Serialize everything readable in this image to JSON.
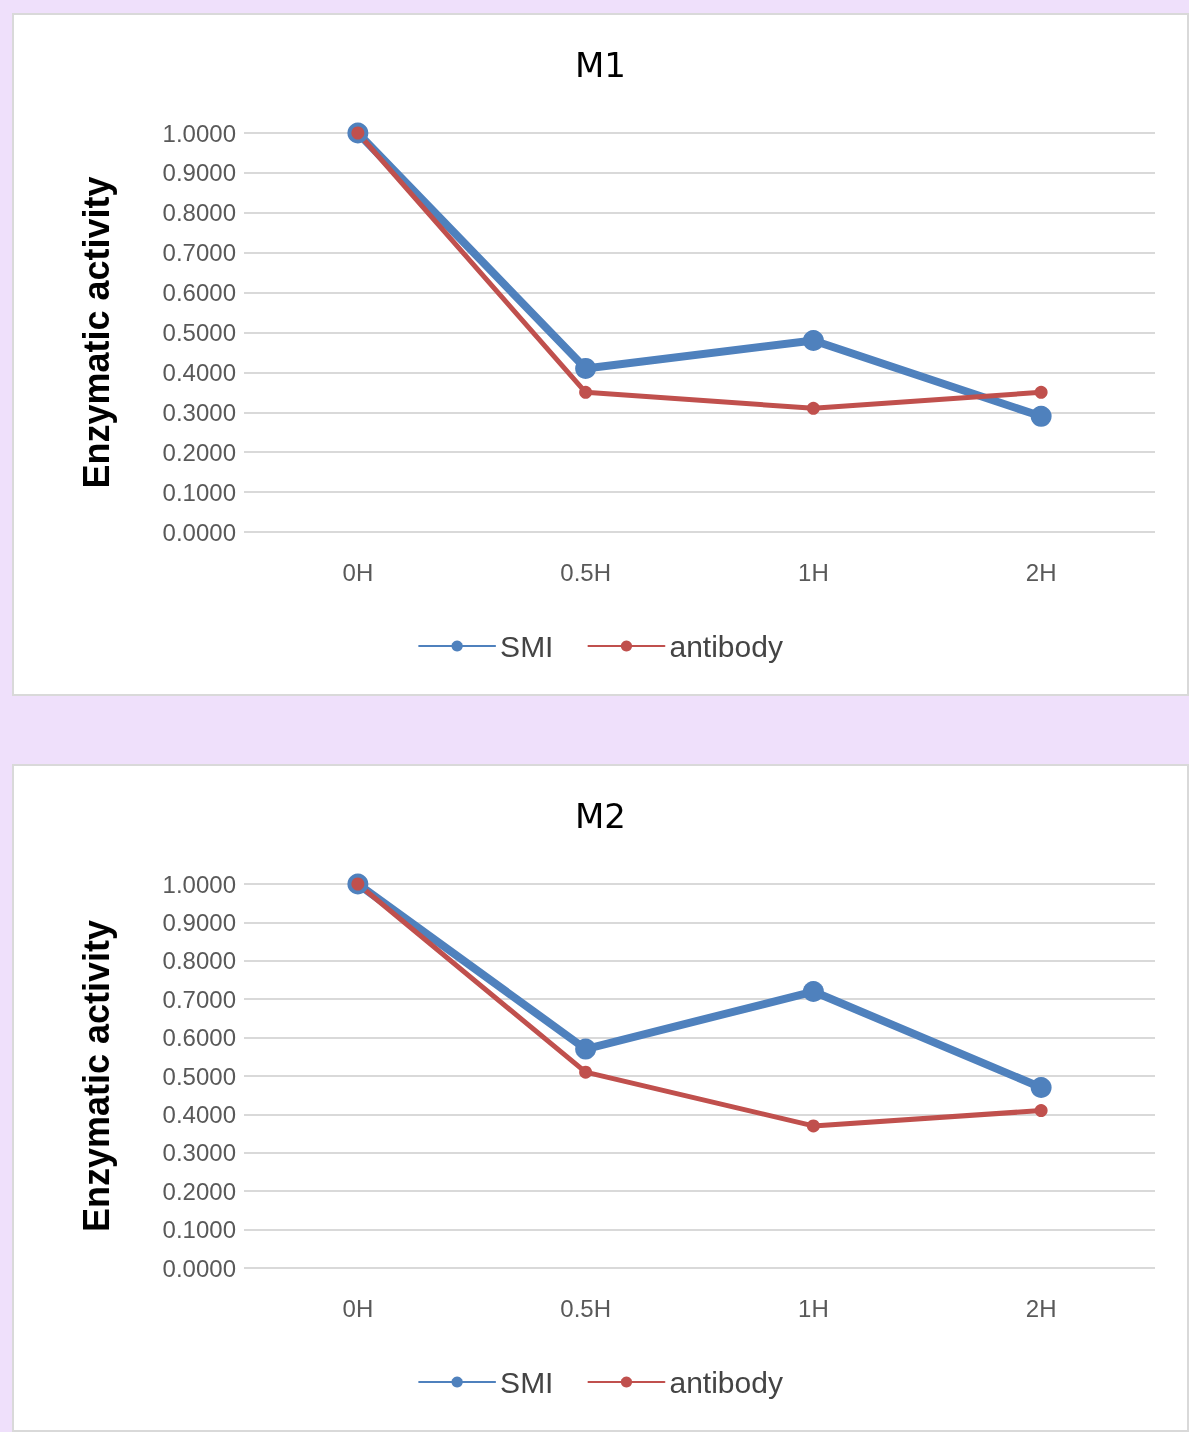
{
  "chart_data": [
    {
      "type": "line",
      "title": "M1",
      "ylabel": "Enzymatic activity",
      "categories": [
        "0H",
        "0.5H",
        "1H",
        "2H"
      ],
      "series": [
        {
          "name": "SMI",
          "color": "#4f81bd",
          "values": [
            1.0,
            0.41,
            0.48,
            0.29
          ]
        },
        {
          "name": "antibody",
          "color": "#c0504d",
          "values": [
            1.0,
            0.35,
            0.31,
            0.35
          ]
        }
      ],
      "ylim": [
        0,
        1
      ],
      "yticks": [
        {
          "value": 0,
          "label": "0.0000"
        },
        {
          "value": 0.1,
          "label": "0.1000"
        },
        {
          "value": 0.2,
          "label": "0.2000"
        },
        {
          "value": 0.3,
          "label": "0.3000"
        },
        {
          "value": 0.4,
          "label": "0.4000"
        },
        {
          "value": 0.5,
          "label": "0.5000"
        },
        {
          "value": 0.6,
          "label": "0.6000"
        },
        {
          "value": 0.7,
          "label": "0.7000"
        },
        {
          "value": 0.8,
          "label": "0.8000"
        },
        {
          "value": 0.9,
          "label": "0.9000"
        },
        {
          "value": 1,
          "label": "1.0000"
        }
      ],
      "grid": "y",
      "legend": "bottom",
      "marker": "circle",
      "line_style": "solid"
    },
    {
      "type": "line",
      "title": "M2",
      "ylabel": "Enzymatic activity",
      "categories": [
        "0H",
        "0.5H",
        "1H",
        "2H"
      ],
      "series": [
        {
          "name": "SMI",
          "color": "#4f81bd",
          "values": [
            1.0,
            0.57,
            0.72,
            0.47
          ]
        },
        {
          "name": "antibody",
          "color": "#c0504d",
          "values": [
            1.0,
            0.51,
            0.37,
            0.41
          ]
        }
      ],
      "ylim": [
        0,
        1
      ],
      "yticks": [
        {
          "value": 0,
          "label": "0.0000"
        },
        {
          "value": 0.1,
          "label": "0.1000"
        },
        {
          "value": 0.2,
          "label": "0.2000"
        },
        {
          "value": 0.3,
          "label": "0.3000"
        },
        {
          "value": 0.4,
          "label": "0.4000"
        },
        {
          "value": 0.5,
          "label": "0.5000"
        },
        {
          "value": 0.6,
          "label": "0.6000"
        },
        {
          "value": 0.7,
          "label": "0.7000"
        },
        {
          "value": 0.8,
          "label": "0.8000"
        },
        {
          "value": 0.9,
          "label": "0.9000"
        },
        {
          "value": 1,
          "label": "1.0000"
        }
      ],
      "grid": "y",
      "legend": "bottom",
      "marker": "circle",
      "line_style": "solid"
    }
  ]
}
